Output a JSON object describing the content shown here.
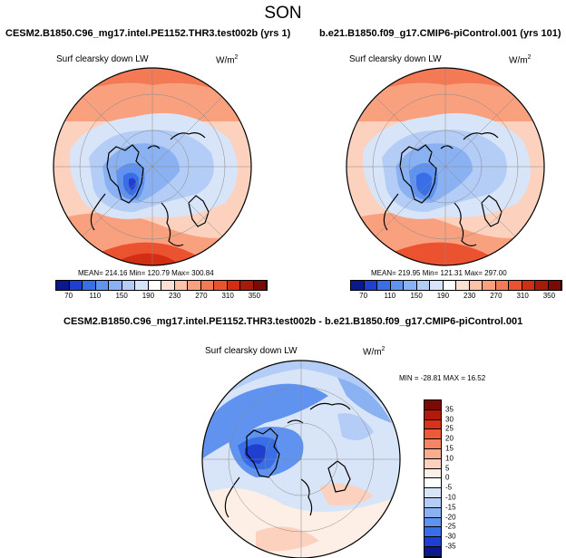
{
  "season": "SON",
  "panels": [
    {
      "title": "CESM2.B1850.C96_mg17.intel.PE1152.THR3.test002b (yrs 1)",
      "variable": "Surf clearsky down LW",
      "units_base": "W/m",
      "units_exp": "2",
      "stats": "MEAN= 214.16  Min= 120.79  Max= 300.84"
    },
    {
      "title": "b.e21.B1850.f09_g17.CMIP6-piControl.001 (yrs 101)",
      "variable": "Surf clearsky down LW",
      "units_base": "W/m",
      "units_exp": "2",
      "stats": "MEAN= 219.95  Min= 121.31  Max= 297.00"
    }
  ],
  "diff_panel": {
    "title": "CESM2.B1850.C96_mg17.intel.PE1152.THR3.test002b - b.e21.B1850.f09_g17.CMIP6-piControl.001",
    "variable": "Surf clearsky down LW",
    "units_base": "W/m",
    "units_exp": "2",
    "stats": "MIN = -28.81  MAX =  16.52"
  },
  "abs_colorbar": {
    "labels": [
      "70",
      "110",
      "150",
      "190",
      "230",
      "270",
      "310",
      "350"
    ],
    "colors": [
      "#0a1a8c",
      "#1e3fd0",
      "#3a6ee6",
      "#5f93ef",
      "#8ab2f3",
      "#b3cdf6",
      "#d8e5f8",
      "#ffffff",
      "#fde0d2",
      "#fcc3a8",
      "#f9a07e",
      "#f47a55",
      "#ea5230",
      "#d22e14",
      "#a81a0a",
      "#7a0a05"
    ]
  },
  "diff_colorbar": {
    "labels": [
      "35",
      "30",
      "25",
      "20",
      "15",
      "10",
      "5",
      "0",
      "-5",
      "-10",
      "-15",
      "-20",
      "-25",
      "-30",
      "-35"
    ],
    "colors": [
      "#7a0a05",
      "#b0190b",
      "#d8321a",
      "#ee5a38",
      "#f58563",
      "#f9ad8f",
      "#fcd2bf",
      "#fdefe6",
      "#ffffff",
      "#d8e5f8",
      "#b3cdf6",
      "#8ab2f3",
      "#5f93ef",
      "#3a6ee6",
      "#1e3fd0",
      "#0a1a8c"
    ]
  }
}
